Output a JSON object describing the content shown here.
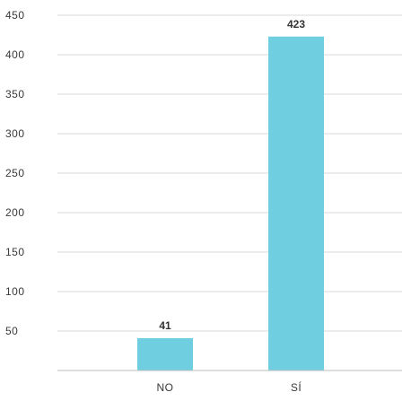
{
  "chart_data": {
    "type": "bar",
    "title": "",
    "xlabel": "",
    "ylabel": "",
    "categories": [
      "NO",
      "SÍ"
    ],
    "values": [
      41,
      423
    ],
    "data_labels": [
      "41",
      "423"
    ],
    "ylim": [
      0,
      450
    ],
    "yticks": [
      50,
      100,
      150,
      200,
      250,
      300,
      350,
      400,
      450
    ],
    "ytick_labels": [
      "50",
      "100",
      "150",
      "200",
      "250",
      "300",
      "350",
      "400",
      "450"
    ],
    "grid": true,
    "legend": "none",
    "colors": {
      "bar": "#6fcfe0",
      "grid": "#d9d9d9",
      "axis": "#bdbdbd",
      "text": "#3a3a3a"
    }
  }
}
